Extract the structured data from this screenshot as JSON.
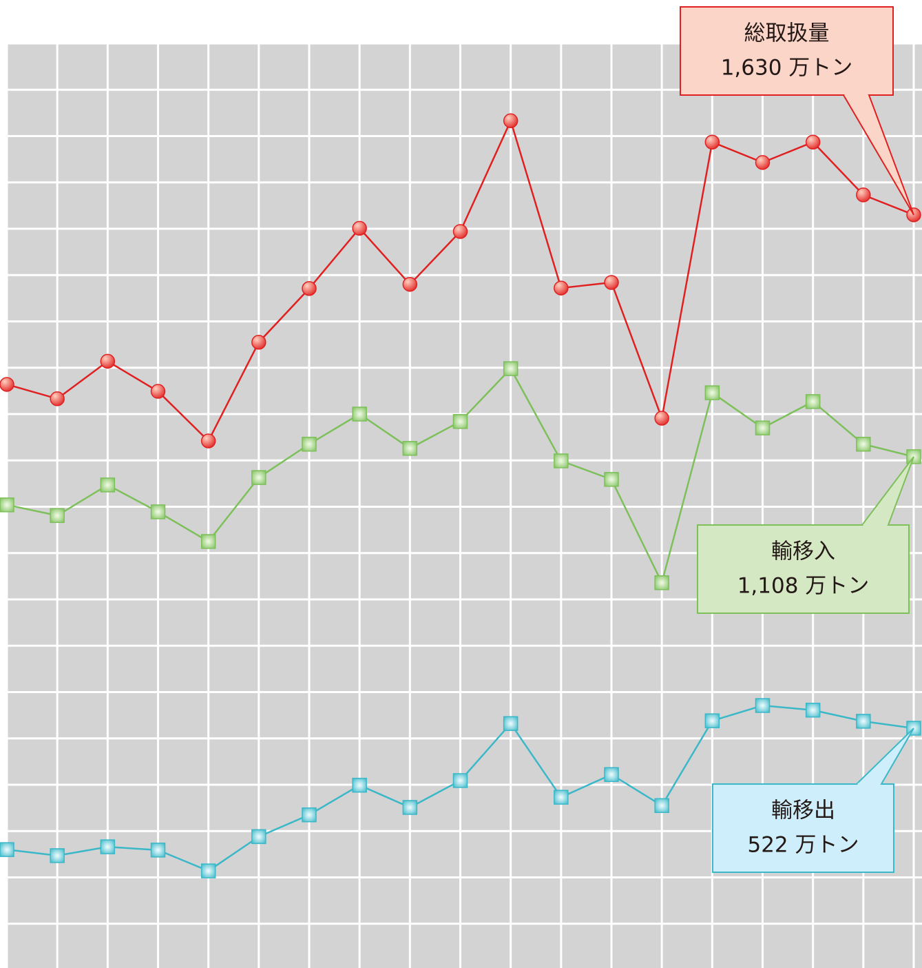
{
  "chart_data": {
    "type": "line",
    "categories": [
      null,
      null,
      null,
      null,
      null,
      null,
      null,
      null,
      null,
      null,
      null,
      null,
      null,
      null,
      null,
      null,
      null,
      null,
      null
    ],
    "series": [
      {
        "name": "総取扱量",
        "color": "#e02020",
        "marker": "circle",
        "box": "#fbd5c8",
        "values": [
          1264,
          1233,
          1314,
          1249,
          1142,
          1355,
          1471,
          1601,
          1480,
          1594,
          1833,
          1472,
          1484,
          1191,
          1787,
          1743,
          1787,
          1673,
          1630
        ],
        "value_labels": [
          null,
          null,
          null,
          null,
          null,
          null,
          null,
          null,
          null,
          null,
          null,
          null,
          null,
          null,
          null,
          null,
          null,
          null,
          "1,630 万トン"
        ]
      },
      {
        "name": "輸移入",
        "color": "#7dc05a",
        "marker": "square",
        "box": "#d5e8c4",
        "values": [
          1004,
          981,
          1047,
          989,
          925,
          1063,
          1135,
          1200,
          1126,
          1184,
          1298,
          1099,
          1059,
          836,
          1246,
          1170,
          1227,
          1135,
          1108
        ],
        "value_labels": [
          null,
          null,
          null,
          null,
          null,
          null,
          null,
          null,
          null,
          null,
          null,
          null,
          null,
          null,
          null,
          null,
          null,
          null,
          "1,108 万トン"
        ]
      },
      {
        "name": "輸移出",
        "color": "#3ab8c8",
        "marker": "square",
        "box": "#cdeefa",
        "values": [
          260,
          247,
          266,
          259,
          214,
          288,
          335,
          399,
          351,
          409,
          532,
          373,
          422,
          355,
          538,
          571,
          561,
          537,
          522
        ],
        "value_labels": [
          null,
          null,
          null,
          null,
          null,
          null,
          null,
          null,
          null,
          null,
          null,
          null,
          null,
          null,
          null,
          null,
          null,
          null,
          "522 万トン"
        ]
      }
    ],
    "ylim": [
      0,
      2000
    ],
    "yticks": [
      0,
      100,
      200,
      300,
      400,
      500,
      600,
      700,
      800,
      900,
      1000,
      1100,
      1200,
      1300,
      1400,
      1500,
      1600,
      1700,
      1800,
      1900,
      2000
    ],
    "grid": true
  }
}
